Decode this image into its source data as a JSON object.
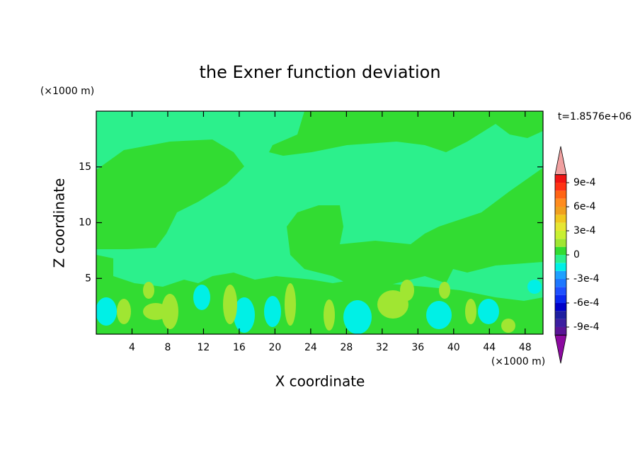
{
  "chart_data": {
    "type": "contour",
    "title": "the Exner function deviation",
    "xlabel": "X coordinate",
    "ylabel": "Z coordinate",
    "x_unit": "(×1000 m)",
    "y_unit": "(×1000 m)",
    "time_label": "t=1.8576e+06",
    "xlim": [
      0,
      50
    ],
    "ylim": [
      0,
      20
    ],
    "xticks": [
      4,
      8,
      12,
      16,
      20,
      24,
      28,
      32,
      36,
      40,
      44,
      48
    ],
    "yticks": [
      5,
      10,
      15
    ],
    "colorbar": {
      "levels": [
        -0.001,
        -0.0009,
        -0.0008,
        -0.0007,
        -0.0006,
        -0.0005,
        -0.0004,
        -0.0003,
        -0.0002,
        -0.0001,
        0,
        0.0001,
        0.0002,
        0.0003,
        0.0004,
        0.0005,
        0.0006,
        0.0007,
        0.0008,
        0.0009,
        0.001
      ],
      "colors": [
        "#5a1496",
        "#3c1ea0",
        "#1e1ea0",
        "#0000c8",
        "#0a28f0",
        "#1e50ff",
        "#1e78ff",
        "#1ea0ff",
        "#00f0e6",
        "#2cf08c",
        "#32dc32",
        "#a0e632",
        "#c8f032",
        "#e6e632",
        "#f0c81e",
        "#f0a01e",
        "#ff8c1e",
        "#ff6414",
        "#ff3214",
        "#f01414"
      ],
      "extend_colors": [
        "#8c0aa0",
        "#f0a0a0"
      ],
      "ticks": [
        {
          "value": 0.0009,
          "label": "9e-4"
        },
        {
          "value": 0.0006,
          "label": "6e-4"
        },
        {
          "value": 0.0003,
          "label": "3e-4"
        },
        0,
        {
          "value": -0.0003,
          "label": "-3e-4"
        },
        {
          "value": -0.0006,
          "label": "-6e-4"
        },
        {
          "value": -0.0009,
          "label": "-9e-4"
        }
      ]
    }
  }
}
